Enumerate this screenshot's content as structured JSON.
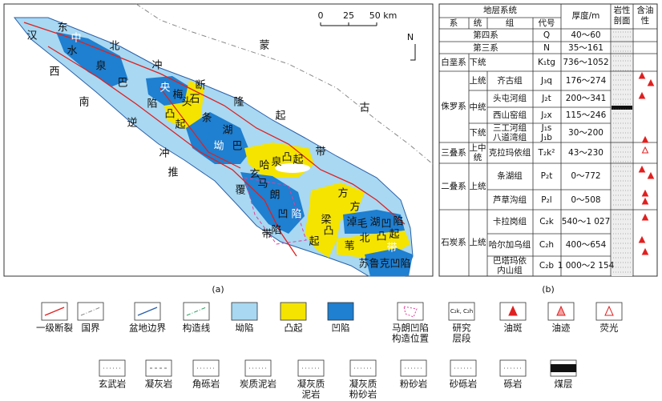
{
  "map": {
    "caption": "(a)",
    "scale_ticks": [
      "0",
      "25",
      "50 km"
    ],
    "north": "N",
    "labels": [
      "汉",
      "东",
      "中",
      "水",
      "北",
      "泉",
      "西",
      "巴",
      "冲",
      "南",
      "央",
      "断",
      "陷",
      "梅",
      "头",
      "石",
      "凸",
      "起",
      "隆",
      "古",
      "逆",
      "条",
      "起",
      "湖",
      "冲",
      "坳",
      "巴",
      "带",
      "哈",
      "泉",
      "凸",
      "起",
      "推",
      "玄",
      "马",
      "朗",
      "覆",
      "凹",
      "陷",
      "方",
      "方",
      "梁",
      "凸",
      "起",
      "带",
      "陷",
      "淖",
      "毛",
      "湖",
      "凹",
      "陷",
      "北",
      "凸",
      "起",
      "苇",
      "带",
      "苏鲁克凹陷",
      "蒙"
    ]
  },
  "table": {
    "caption": "(b)",
    "header": {
      "group": "地层系统",
      "thickness": "厚度/m",
      "lithology": [
        "岩性",
        "剖面"
      ],
      "oil": [
        "含油",
        "性"
      ]
    },
    "columns": [
      "系",
      "统",
      "组",
      "代号"
    ],
    "rows": [
      {
        "system": "第四系",
        "code": "Q",
        "thickness": "40～60"
      },
      {
        "system": "第三系",
        "code": "N",
        "thickness": "35～161"
      },
      {
        "system": "白垩系",
        "series": "下统",
        "code": "K₁tg",
        "thickness": "736～1052"
      },
      {
        "system": "侏罗系",
        "series": "上统",
        "formation": "齐古组",
        "code": "J₃q",
        "thickness": "176～274"
      },
      {
        "series": "中统",
        "formation": "头屯河组",
        "code": "J₂t",
        "thickness": "200～341"
      },
      {
        "formation": "西山窑组",
        "code": "J₂x",
        "thickness": "115～246"
      },
      {
        "series": "下统",
        "formation": [
          "三工河组",
          "八道湾组"
        ],
        "code": [
          "J₁s",
          "J₁b"
        ],
        "thickness": "30～200"
      },
      {
        "system": "三叠系",
        "series": [
          "上中",
          "统"
        ],
        "formation": "克拉玛依组",
        "code": "T₂k²",
        "thickness": "43～230"
      },
      {
        "system": "二叠系",
        "series": "上统",
        "formation": "条湖组",
        "code": "P₂t",
        "thickness": "0～772"
      },
      {
        "formation": "芦草沟组",
        "code": "P₂l",
        "thickness": "0～508"
      },
      {
        "system": "石炭系",
        "series": "上统",
        "formation": "卡拉岗组",
        "code": "C₂k",
        "thickness": "540～1 027"
      },
      {
        "formation": "哈尔加乌组",
        "code": "C₂h",
        "thickness": "400～654"
      },
      {
        "formation": [
          "巴塔玛依",
          "内山组"
        ],
        "code": "C₂b",
        "thickness": "1 000～2 154"
      }
    ]
  },
  "legend": {
    "row1": [
      "一级断裂",
      "国界",
      "盆地边界",
      "构造线",
      "坳陷",
      "凸起",
      "凹陷",
      [
        "马朗凹陷",
        "构造位置"
      ],
      [
        "研究",
        "层段"
      ],
      "油斑",
      "油迹",
      "荧光"
    ],
    "research_icon": "C₂k, C₂h",
    "row2": [
      "玄武岩",
      "凝灰岩",
      "角砾岩",
      "炭质泥岩",
      [
        "凝灰质",
        "泥岩"
      ],
      [
        "凝灰质",
        "粉砂岩"
      ],
      "粉砂岩",
      "砂砾岩",
      "砾岩",
      "煤层"
    ]
  }
}
